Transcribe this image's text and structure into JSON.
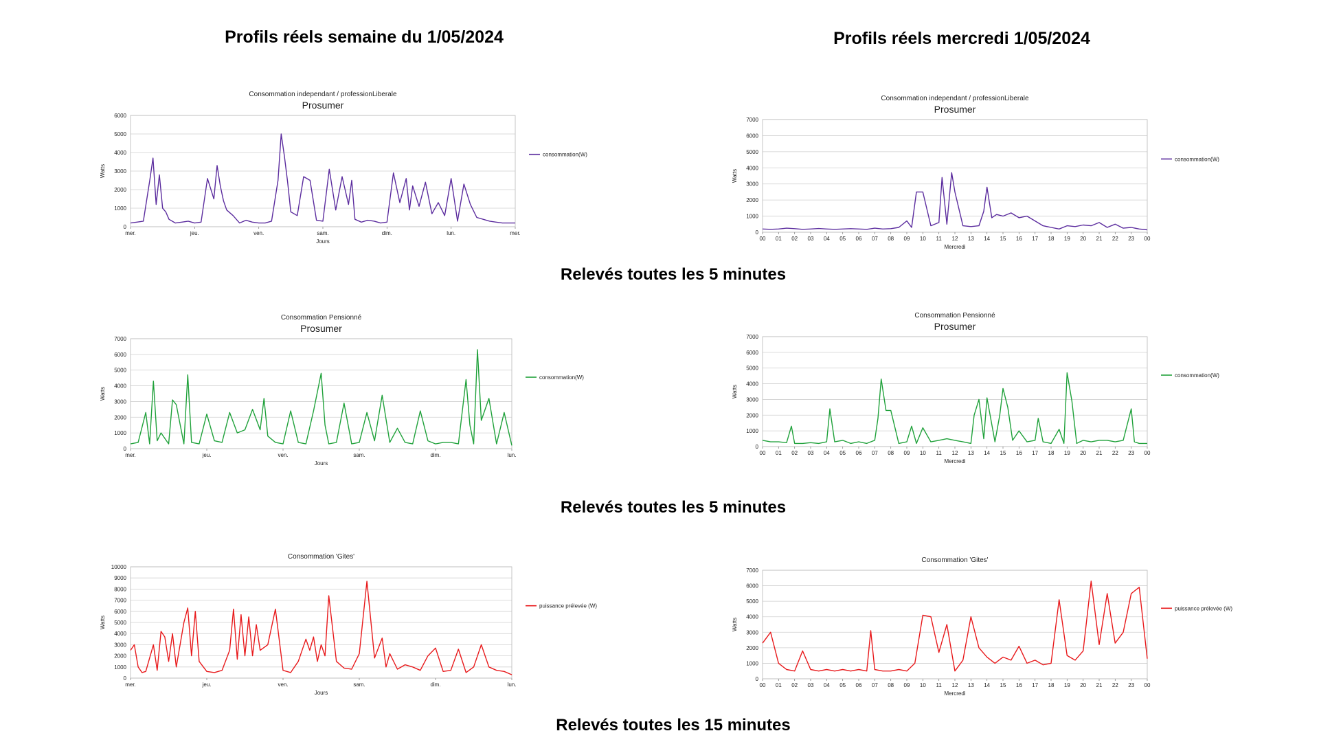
{
  "headings": {
    "week_title": "Profils réels semaine du 1/05/2024",
    "day_title": "Profils réels mercredi 1/05/2024",
    "row1_caption": "Relevés toutes les 5 minutes",
    "row2_caption": "Relevés toutes les 5 minutes",
    "row3_caption": "Relevés toutes les 15 minutes"
  },
  "chart_data": [
    {
      "id": "c1",
      "type": "line",
      "title": "Consommation independant / professionLiberale",
      "subtitle": "Prosumer",
      "xlabel": "Jours",
      "ylabel": "Watts",
      "ylim": [
        0,
        6000
      ],
      "yticks": [
        0,
        1000,
        2000,
        3000,
        4000,
        5000,
        6000
      ],
      "xticks": [
        "mer.",
        "jeu.",
        "ven.",
        "sam.",
        "dim.",
        "lun.",
        "mer."
      ],
      "xlim": [
        0,
        6
      ],
      "grid": true,
      "legend": "right",
      "series": [
        {
          "name": "consommation(W)",
          "color": "#5b2c9e",
          "x": [
            0,
            0.1,
            0.2,
            0.3,
            0.35,
            0.4,
            0.45,
            0.5,
            0.55,
            0.6,
            0.7,
            0.8,
            0.9,
            1.0,
            1.1,
            1.2,
            1.3,
            1.35,
            1.4,
            1.45,
            1.5,
            1.6,
            1.7,
            1.8,
            1.9,
            2.0,
            2.1,
            2.2,
            2.3,
            2.35,
            2.4,
            2.45,
            2.5,
            2.6,
            2.7,
            2.8,
            2.9,
            3.0,
            3.1,
            3.2,
            3.3,
            3.4,
            3.45,
            3.5,
            3.6,
            3.7,
            3.8,
            3.9,
            4.0,
            4.1,
            4.2,
            4.3,
            4.35,
            4.4,
            4.5,
            4.6,
            4.7,
            4.8,
            4.9,
            5.0,
            5.1,
            5.2,
            5.3,
            5.4,
            5.5,
            5.6,
            5.7,
            5.8,
            5.9,
            6.0
          ],
          "y": [
            200,
            250,
            300,
            2500,
            3700,
            1200,
            2800,
            1000,
            800,
            400,
            200,
            250,
            300,
            200,
            250,
            2600,
            1500,
            3300,
            2200,
            1400,
            900,
            600,
            200,
            350,
            250,
            200,
            200,
            300,
            2500,
            5000,
            3800,
            2400,
            800,
            600,
            2700,
            2500,
            350,
            300,
            3100,
            900,
            2700,
            1200,
            2500,
            400,
            250,
            350,
            300,
            200,
            250,
            2900,
            1300,
            2600,
            900,
            2200,
            1100,
            2400,
            700,
            1300,
            600,
            2600,
            300,
            2300,
            1200,
            500,
            400,
            300,
            250,
            200,
            200,
            200
          ]
        }
      ]
    },
    {
      "id": "c2",
      "type": "line",
      "title": "Consommation independant / professionLiberale",
      "subtitle": "Prosumer",
      "xlabel": "Mercredi",
      "ylabel": "Watts",
      "ylim": [
        0,
        7000
      ],
      "yticks": [
        0,
        1000,
        2000,
        3000,
        4000,
        5000,
        6000,
        7000
      ],
      "xticks": [
        "00",
        "01",
        "02",
        "03",
        "04",
        "05",
        "06",
        "07",
        "08",
        "09",
        "10",
        "11",
        "12",
        "13",
        "14",
        "15",
        "16",
        "17",
        "18",
        "19",
        "20",
        "21",
        "22",
        "23",
        "00"
      ],
      "xlim": [
        0,
        24
      ],
      "grid": true,
      "legend": "right",
      "series": [
        {
          "name": "consommation(W)",
          "color": "#5b2c9e",
          "x": [
            0,
            0.5,
            1,
            1.5,
            2,
            2.5,
            3,
            3.5,
            4,
            4.5,
            5,
            5.5,
            6,
            6.5,
            7,
            7.5,
            8,
            8.5,
            9,
            9.3,
            9.6,
            10,
            10.5,
            11,
            11.2,
            11.5,
            11.8,
            12,
            12.5,
            13,
            13.5,
            13.8,
            14,
            14.3,
            14.6,
            15,
            15.5,
            16,
            16.5,
            17,
            17.5,
            18,
            18.5,
            19,
            19.5,
            20,
            20.5,
            21,
            21.5,
            22,
            22.5,
            23,
            23.5,
            24
          ],
          "y": [
            200,
            180,
            200,
            250,
            220,
            180,
            200,
            230,
            200,
            180,
            200,
            220,
            200,
            180,
            250,
            200,
            220,
            300,
            700,
            300,
            2500,
            2500,
            400,
            600,
            3400,
            500,
            3700,
            2500,
            400,
            350,
            400,
            1300,
            2800,
            900,
            1100,
            1000,
            1200,
            900,
            1000,
            700,
            400,
            300,
            200,
            400,
            350,
            450,
            400,
            600,
            300,
            500,
            250,
            300,
            200,
            150
          ]
        }
      ]
    },
    {
      "id": "c3",
      "type": "line",
      "title": "Consommation Pensionné",
      "subtitle": "Prosumer",
      "xlabel": "Jours",
      "ylabel": "Watts",
      "ylim": [
        0,
        7000
      ],
      "yticks": [
        0,
        1000,
        2000,
        3000,
        4000,
        5000,
        6000,
        7000
      ],
      "xticks": [
        "mer.",
        "jeu.",
        "ven.",
        "sam.",
        "dim.",
        "lun."
      ],
      "xlim": [
        0,
        5
      ],
      "grid": true,
      "legend": "right",
      "series": [
        {
          "name": "consommation(W)",
          "color": "#1fa13a",
          "x": [
            0,
            0.1,
            0.2,
            0.25,
            0.3,
            0.35,
            0.4,
            0.5,
            0.55,
            0.6,
            0.7,
            0.75,
            0.8,
            0.9,
            1.0,
            1.1,
            1.2,
            1.3,
            1.4,
            1.5,
            1.6,
            1.7,
            1.75,
            1.8,
            1.9,
            2.0,
            2.1,
            2.2,
            2.3,
            2.4,
            2.5,
            2.55,
            2.6,
            2.7,
            2.8,
            2.9,
            3.0,
            3.1,
            3.2,
            3.3,
            3.4,
            3.5,
            3.6,
            3.7,
            3.8,
            3.9,
            4.0,
            4.1,
            4.2,
            4.3,
            4.4,
            4.45,
            4.5,
            4.55,
            4.6,
            4.7,
            4.8,
            4.9,
            5.0
          ],
          "y": [
            300,
            400,
            2300,
            300,
            4300,
            500,
            1000,
            300,
            3100,
            2800,
            300,
            4700,
            400,
            300,
            2200,
            500,
            400,
            2300,
            1000,
            1200,
            2500,
            1200,
            3200,
            800,
            400,
            300,
            2400,
            400,
            300,
            2400,
            4800,
            1500,
            300,
            400,
            2900,
            300,
            400,
            2300,
            500,
            3400,
            400,
            1300,
            400,
            300,
            2400,
            500,
            300,
            400,
            400,
            300,
            4400,
            1500,
            300,
            6300,
            1800,
            3200,
            300,
            2300,
            200
          ]
        }
      ]
    },
    {
      "id": "c4",
      "type": "line",
      "title": "Consommation Pensionné",
      "subtitle": "Prosumer",
      "xlabel": "Mercredi",
      "ylabel": "Watts",
      "ylim": [
        0,
        7000
      ],
      "yticks": [
        0,
        1000,
        2000,
        3000,
        4000,
        5000,
        6000,
        7000
      ],
      "xticks": [
        "00",
        "01",
        "02",
        "03",
        "04",
        "05",
        "06",
        "07",
        "08",
        "09",
        "10",
        "11",
        "12",
        "13",
        "14",
        "15",
        "16",
        "17",
        "18",
        "19",
        "20",
        "21",
        "22",
        "23",
        "00"
      ],
      "xlim": [
        0,
        24
      ],
      "grid": true,
      "legend": "right",
      "series": [
        {
          "name": "consommation(W)",
          "color": "#1fa13a",
          "x": [
            0,
            0.5,
            1,
            1.5,
            1.8,
            2,
            2.5,
            3,
            3.5,
            4,
            4.2,
            4.5,
            5,
            5.5,
            6,
            6.5,
            7,
            7.2,
            7.4,
            7.7,
            8,
            8.5,
            9,
            9.3,
            9.6,
            10,
            10.5,
            11,
            11.5,
            12,
            12.5,
            13,
            13.2,
            13.5,
            13.8,
            14,
            14.5,
            14.8,
            15,
            15.3,
            15.6,
            16,
            16.5,
            17,
            17.2,
            17.5,
            18,
            18.5,
            18.8,
            19,
            19.3,
            19.6,
            20,
            20.5,
            21,
            21.5,
            22,
            22.5,
            23,
            23.2,
            23.5,
            24
          ],
          "y": [
            400,
            300,
            300,
            250,
            1300,
            200,
            200,
            250,
            200,
            300,
            2400,
            300,
            400,
            200,
            300,
            200,
            400,
            1800,
            4300,
            2300,
            2300,
            200,
            300,
            1300,
            200,
            1200,
            300,
            400,
            500,
            400,
            300,
            200,
            2000,
            3000,
            500,
            3100,
            300,
            2000,
            3700,
            2500,
            400,
            1000,
            300,
            400,
            1800,
            300,
            200,
            1100,
            200,
            4700,
            2900,
            200,
            400,
            300,
            400,
            400,
            300,
            400,
            2400,
            300,
            200,
            200
          ]
        }
      ]
    },
    {
      "id": "c5",
      "type": "line",
      "title": "Consommation 'Gites'",
      "subtitle": "",
      "xlabel": "Jours",
      "ylabel": "Watts",
      "ylim": [
        0,
        10000
      ],
      "yticks": [
        0,
        1000,
        2000,
        3000,
        4000,
        5000,
        6000,
        7000,
        8000,
        9000,
        10000
      ],
      "xticks": [
        "mer.",
        "jeu.",
        "ven.",
        "sam.",
        "dim.",
        "lun."
      ],
      "xlim": [
        0,
        5
      ],
      "grid": true,
      "legend": "right",
      "series": [
        {
          "name": "puissance prélevée (W)",
          "color": "#e8191b",
          "x": [
            0,
            0.05,
            0.1,
            0.15,
            0.2,
            0.3,
            0.35,
            0.4,
            0.45,
            0.5,
            0.55,
            0.6,
            0.7,
            0.75,
            0.8,
            0.85,
            0.9,
            1.0,
            1.1,
            1.2,
            1.3,
            1.35,
            1.4,
            1.45,
            1.5,
            1.55,
            1.6,
            1.65,
            1.7,
            1.8,
            1.9,
            2.0,
            2.1,
            2.2,
            2.3,
            2.35,
            2.4,
            2.45,
            2.5,
            2.55,
            2.6,
            2.7,
            2.8,
            2.9,
            3.0,
            3.1,
            3.2,
            3.3,
            3.35,
            3.4,
            3.5,
            3.6,
            3.7,
            3.8,
            3.9,
            4.0,
            4.1,
            4.2,
            4.3,
            4.4,
            4.5,
            4.6,
            4.7,
            4.8,
            4.9,
            5.0
          ],
          "y": [
            2500,
            3000,
            1000,
            500,
            600,
            3000,
            700,
            4200,
            3700,
            1500,
            4000,
            1000,
            5000,
            6300,
            2000,
            6000,
            1500,
            600,
            500,
            700,
            2500,
            6200,
            1700,
            5700,
            2000,
            5500,
            2000,
            4800,
            2500,
            3000,
            6200,
            700,
            500,
            1500,
            3500,
            2500,
            3700,
            1500,
            3000,
            2000,
            7400,
            1500,
            900,
            800,
            2200,
            8700,
            1800,
            3600,
            1000,
            2200,
            800,
            1200,
            1000,
            700,
            2000,
            2700,
            600,
            700,
            2600,
            500,
            1000,
            3000,
            1000,
            700,
            600,
            300
          ]
        }
      ]
    },
    {
      "id": "c6",
      "type": "line",
      "title": "Consommation 'Gites'",
      "subtitle": "",
      "xlabel": "Mercredi",
      "ylabel": "Watts",
      "ylim": [
        0,
        7000
      ],
      "yticks": [
        0,
        1000,
        2000,
        3000,
        4000,
        5000,
        6000,
        7000
      ],
      "xticks": [
        "00",
        "01",
        "02",
        "03",
        "04",
        "05",
        "06",
        "07",
        "08",
        "09",
        "10",
        "11",
        "12",
        "13",
        "14",
        "15",
        "16",
        "17",
        "18",
        "19",
        "20",
        "21",
        "22",
        "23",
        "00"
      ],
      "xlim": [
        0,
        24
      ],
      "grid": true,
      "legend": "right",
      "series": [
        {
          "name": "puissance prélevée (W)",
          "color": "#e8191b",
          "x": [
            0,
            0.5,
            1,
            1.5,
            2,
            2.5,
            3,
            3.5,
            4,
            4.5,
            5,
            5.5,
            6,
            6.5,
            6.75,
            7,
            7.5,
            8,
            8.5,
            9,
            9.5,
            10,
            10.5,
            11,
            11.5,
            12,
            12.5,
            13,
            13.5,
            14,
            14.5,
            15,
            15.5,
            16,
            16.5,
            17,
            17.5,
            18,
            18.5,
            19,
            19.5,
            20,
            20.5,
            21,
            21.5,
            22,
            22.5,
            23,
            23.5,
            24
          ],
          "y": [
            2300,
            3000,
            1000,
            600,
            500,
            1800,
            600,
            500,
            600,
            500,
            600,
            500,
            600,
            500,
            3100,
            600,
            500,
            500,
            600,
            500,
            1000,
            4100,
            4000,
            1700,
            3500,
            500,
            1200,
            4000,
            2000,
            1400,
            1000,
            1400,
            1200,
            2100,
            1000,
            1200,
            900,
            1000,
            5100,
            1500,
            1200,
            1800,
            6300,
            2200,
            5500,
            2300,
            3000,
            5500,
            5900,
            1300
          ]
        }
      ]
    }
  ]
}
